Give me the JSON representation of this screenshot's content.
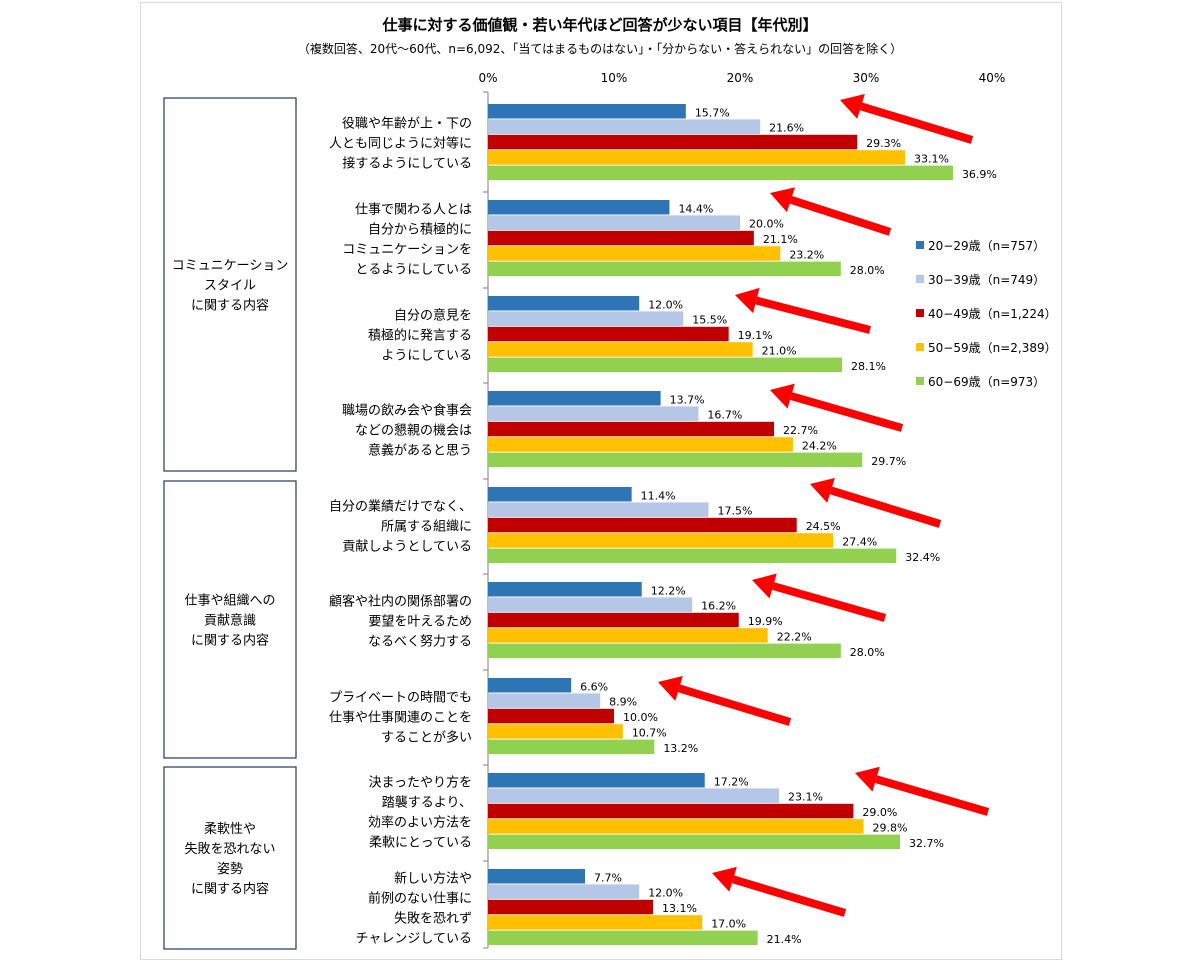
{
  "chart_data": {
    "type": "bar",
    "orientation": "horizontal",
    "title": "仕事に対する価値観・若い年代ほど回答が少ない項目【年代別】",
    "subtitle": "（複数回答、20代～60代、n=6,092、「当てはまるものはない」・「分からない・答えられない」の回答を除く）",
    "xlim": [
      0,
      40
    ],
    "xticks": [
      "0%",
      "10%",
      "20%",
      "30%",
      "40%"
    ],
    "value_suffix": "%",
    "legend_position": "right",
    "groups": [
      {
        "label": [
          "コミュニケーション",
          "スタイル",
          "に関する内容"
        ],
        "item_count": 4
      },
      {
        "label": [
          "仕事や組織への",
          "貢献意識",
          "に関する内容"
        ],
        "item_count": 3
      },
      {
        "label": [
          "柔軟性や",
          "失敗を恐れない",
          "姿勢",
          "に関する内容"
        ],
        "item_count": 2
      }
    ],
    "categories": [
      [
        "役職や年齢が上・下の",
        "人とも同じように対等に",
        "接するようにしている"
      ],
      [
        "仕事で関わる人とは",
        "自分から積極的に",
        "コミュニケーションを",
        "とるようにしている"
      ],
      [
        "自分の意見を",
        "積極的に発言する",
        "ようにしている"
      ],
      [
        "職場の飲み会や食事会",
        "などの懇親の機会は",
        "意義があると思う"
      ],
      [
        "自分の業績だけでなく、",
        "所属する組織に",
        "貢献しようとしている"
      ],
      [
        "顧客や社内の関係部署の",
        "要望を叶えるため",
        "なるべく努力する"
      ],
      [
        "プライベートの時間でも",
        "仕事や仕事関連のことを",
        "することが多い"
      ],
      [
        "決まったやり方を",
        "踏襲するより、",
        "効率のよい方法を",
        "柔軟にとっている"
      ],
      [
        "新しい方法や",
        "前例のない仕事に",
        "失敗を恐れず",
        "チャレンジしている"
      ]
    ],
    "series": [
      {
        "name": "20−29歳（n=757）",
        "color": "#2e75b6",
        "values": [
          15.7,
          14.4,
          12.0,
          13.7,
          11.4,
          12.2,
          6.6,
          17.2,
          7.7
        ]
      },
      {
        "name": "30−39歳（n=749）",
        "color": "#b4c7e7",
        "values": [
          21.6,
          20.0,
          15.5,
          16.7,
          17.5,
          16.2,
          8.9,
          23.1,
          12.0
        ]
      },
      {
        "name": "40−49歳（n=1,224）",
        "color": "#c00000",
        "values": [
          29.3,
          21.1,
          19.1,
          22.7,
          24.5,
          19.9,
          10.0,
          29.0,
          13.1
        ]
      },
      {
        "name": "50−59歳（n=2,389）",
        "color": "#ffc000",
        "values": [
          33.1,
          23.2,
          21.0,
          24.2,
          27.4,
          22.2,
          10.7,
          29.8,
          17.0
        ]
      },
      {
        "name": "60−69歳（n=973）",
        "color": "#92d050",
        "values": [
          36.9,
          28.0,
          28.1,
          29.7,
          32.4,
          28.0,
          13.2,
          32.7,
          21.4
        ]
      }
    ],
    "annotation_arrow_color": "#ff0000"
  }
}
